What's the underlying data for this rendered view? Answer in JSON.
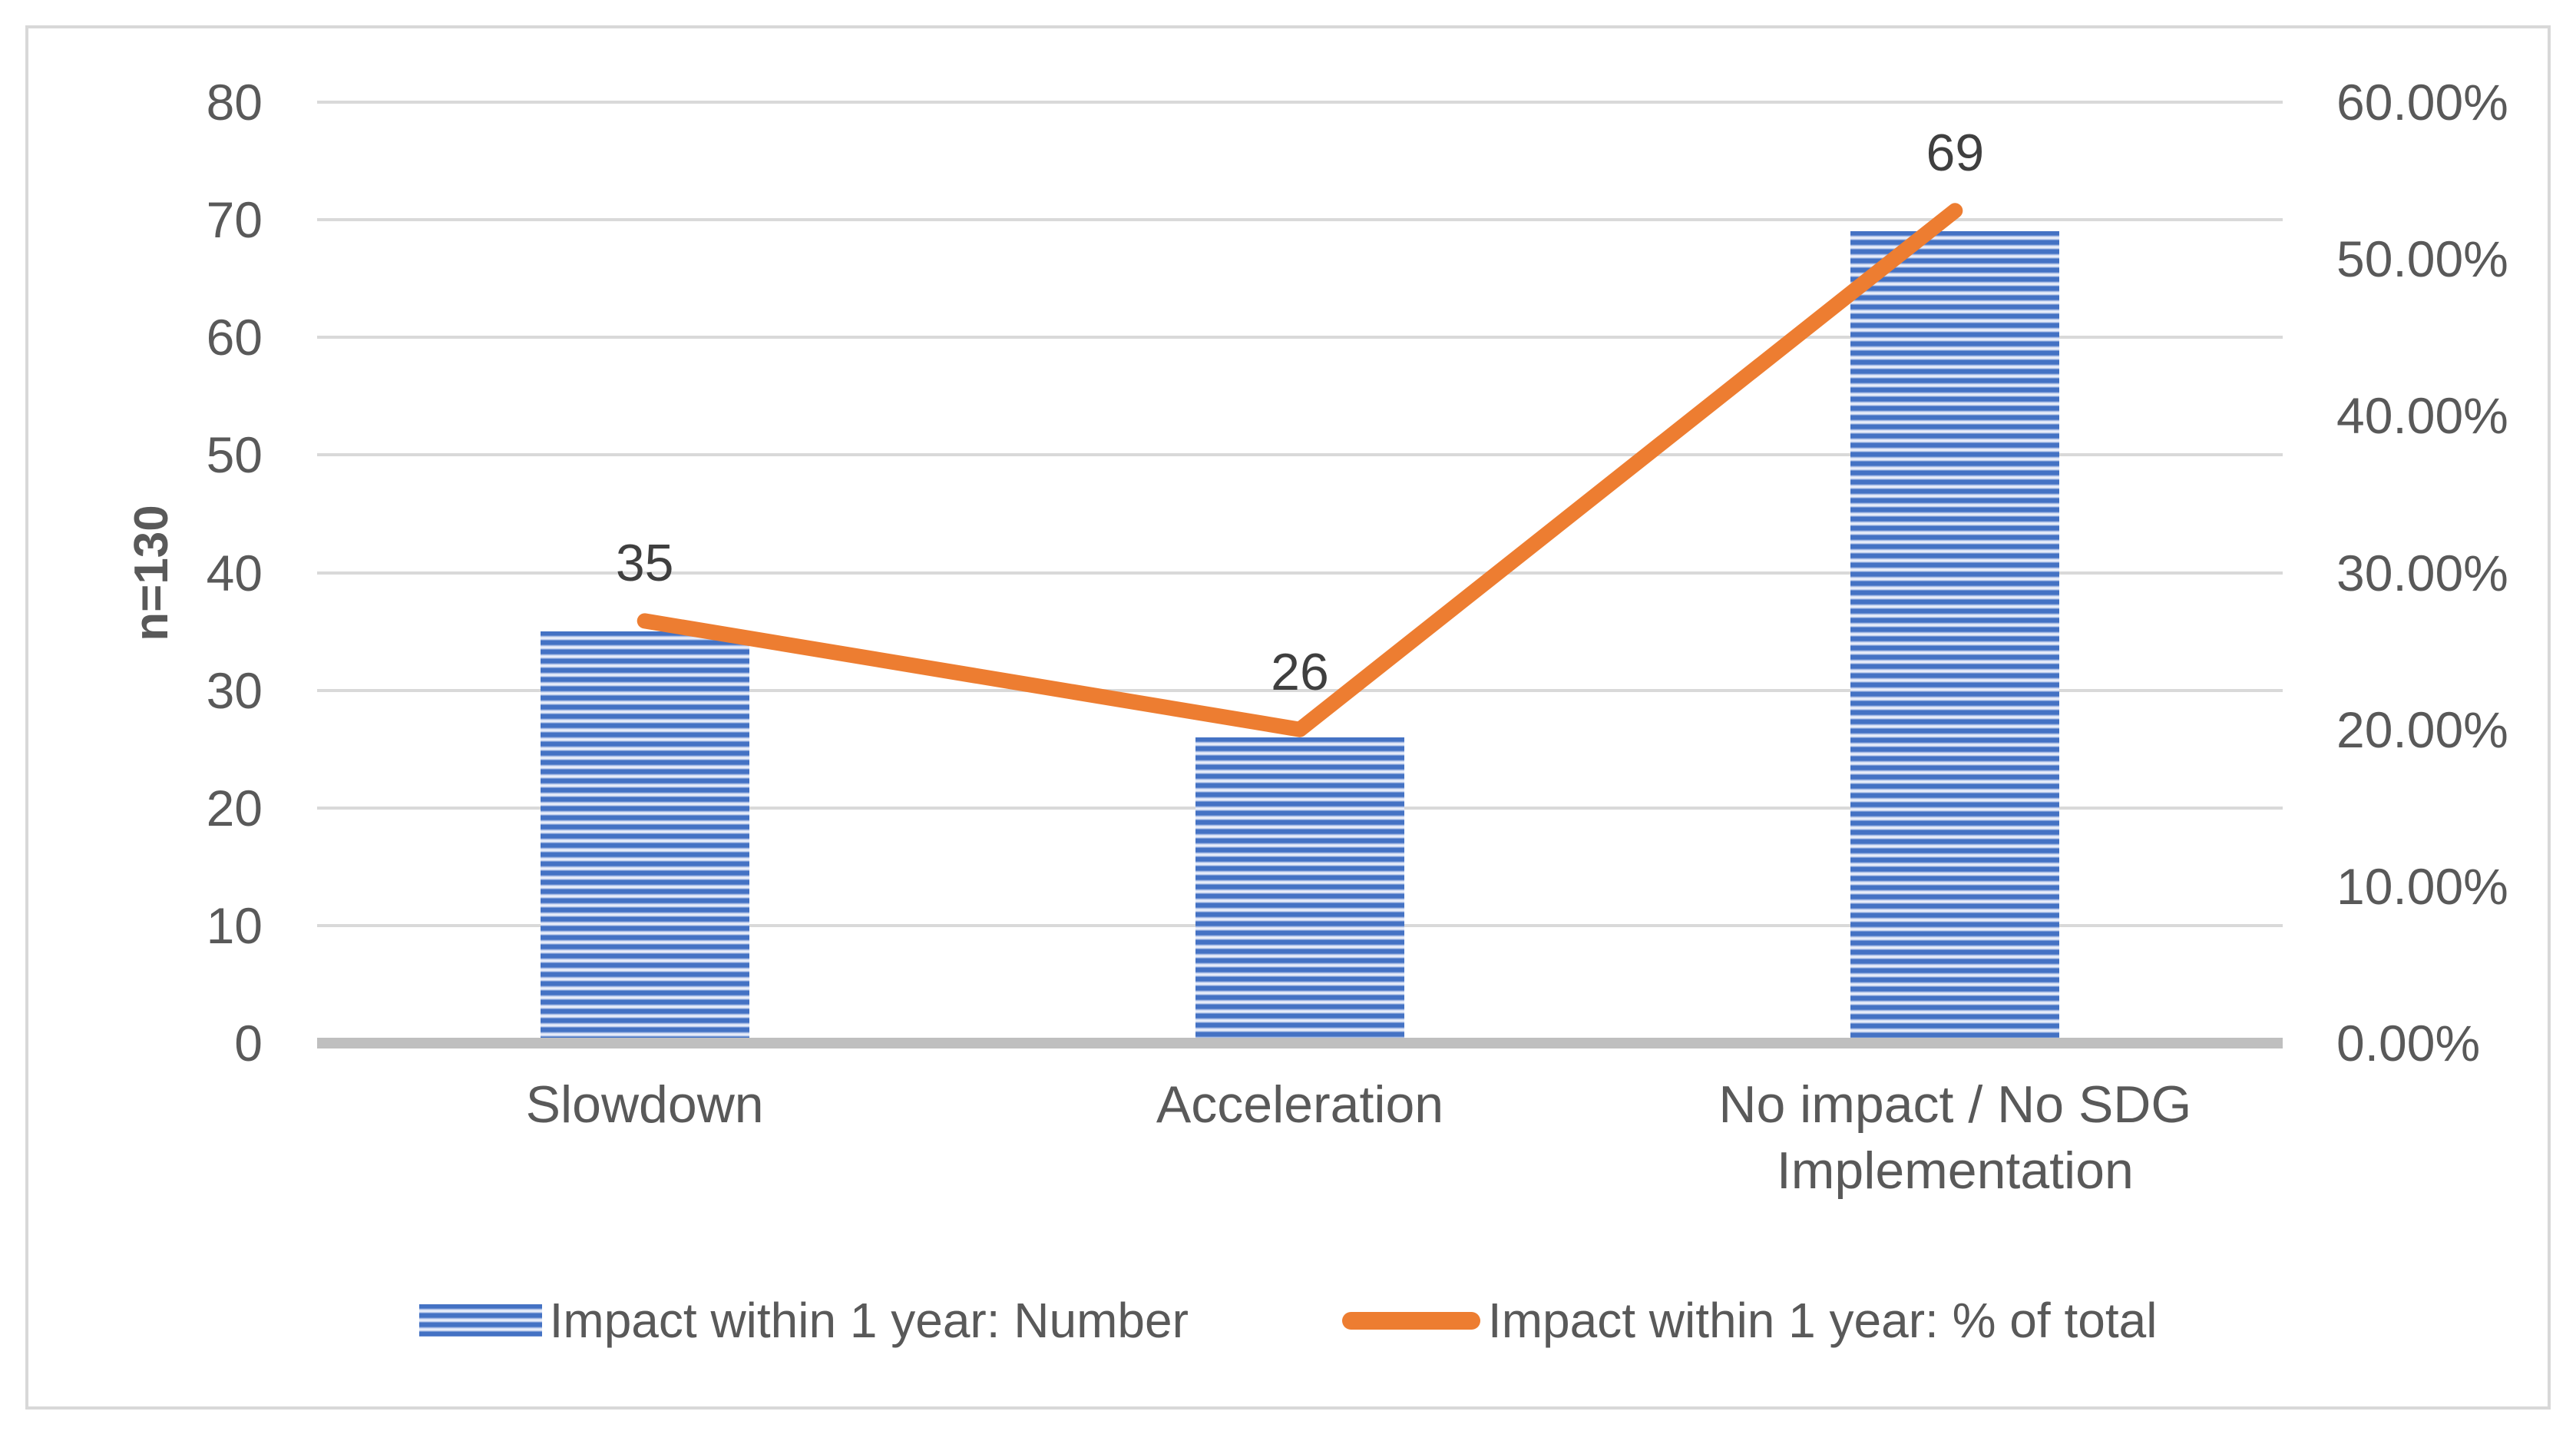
{
  "chart_data": {
    "type": "combo-bar-line",
    "categories": [
      "Slowdown",
      "Acceleration",
      "No impact / No SDG Implementation"
    ],
    "series": [
      {
        "name": "Impact within 1 year: Number",
        "type": "bar",
        "axis": "left",
        "values": [
          35,
          26,
          69
        ],
        "data_labels": [
          "35",
          "26",
          "69"
        ],
        "color": "#4472C4",
        "fill_pattern": "horizontal-stripes"
      },
      {
        "name": "Impact within 1 year: % of total",
        "type": "line",
        "axis": "right",
        "values_percent": [
          26.92,
          20.0,
          53.08
        ],
        "color": "#ED7D31"
      }
    ],
    "left_axis": {
      "title": "n=130",
      "min": 0,
      "max": 80,
      "step": 10,
      "tick_labels": [
        "0",
        "10",
        "20",
        "30",
        "40",
        "50",
        "60",
        "70",
        "80"
      ]
    },
    "right_axis": {
      "min": 0,
      "max": 60,
      "step": 10,
      "tick_labels": [
        "0.00%",
        "10.00%",
        "20.00%",
        "30.00%",
        "40.00%",
        "50.00%",
        "60.00%"
      ]
    },
    "legend": {
      "position": "bottom",
      "entries": [
        {
          "label": "Impact within 1 year: Number",
          "marker": "striped-bar-swatch",
          "color": "#4472C4"
        },
        {
          "label": "Impact within 1 year: % of total",
          "marker": "line-swatch",
          "color": "#ED7D31"
        }
      ]
    },
    "grid": {
      "horizontal": true,
      "color": "#D9D9D9"
    },
    "axis_line_color": "#BFBFBF",
    "text_color": "#595959",
    "data_label_color": "#3F3F3F",
    "background": "#FFFFFF"
  }
}
